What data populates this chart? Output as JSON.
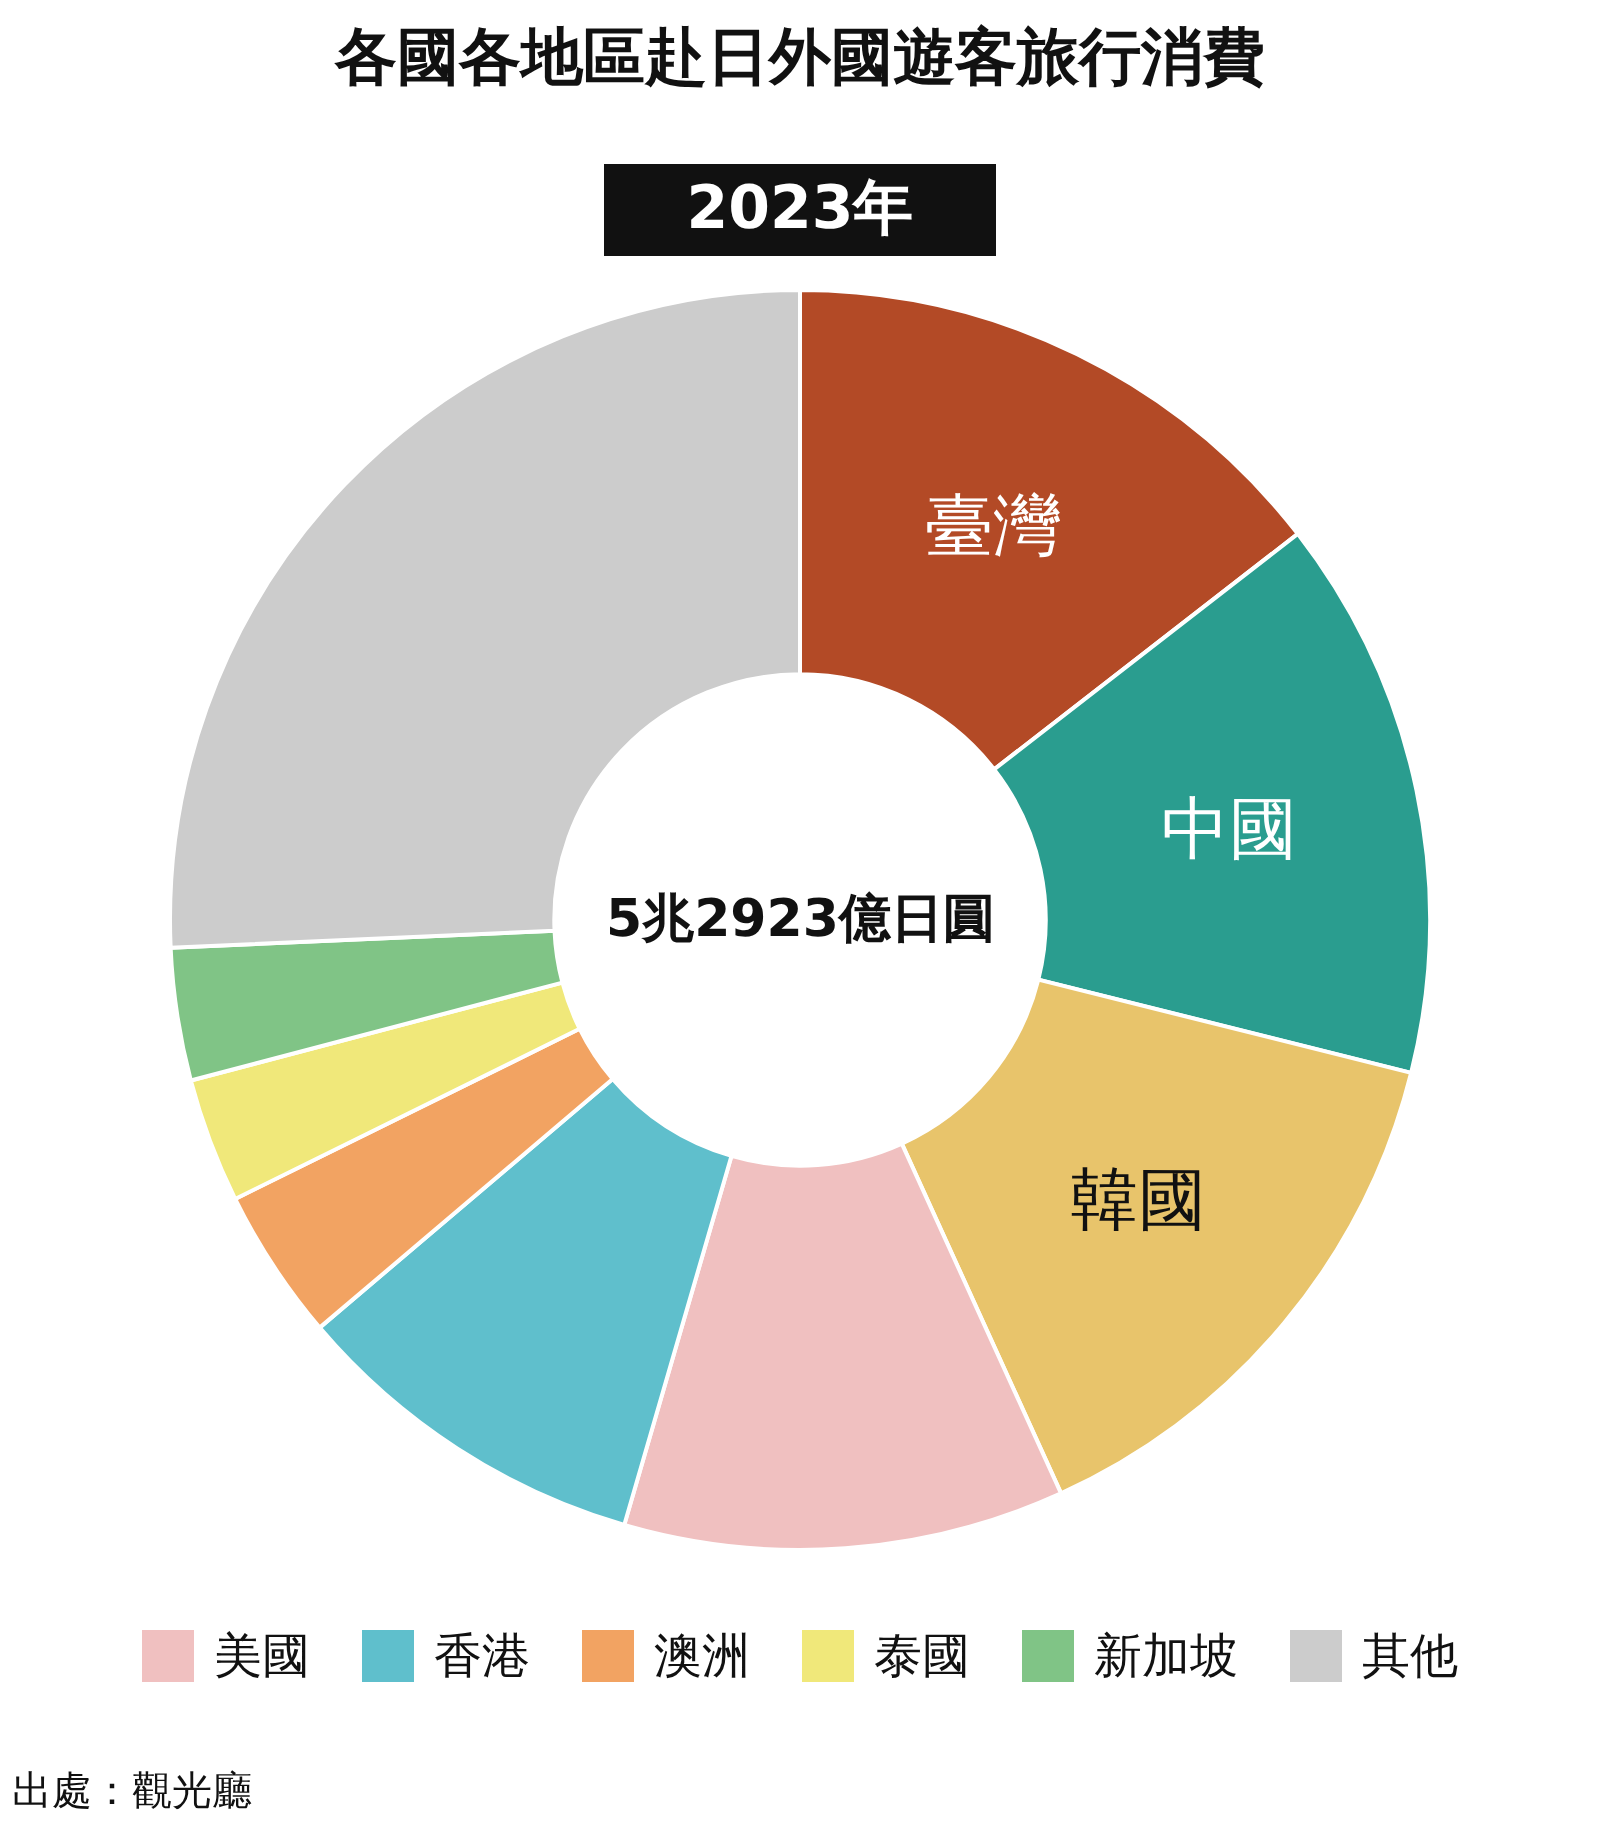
{
  "chart_data": {
    "type": "donut",
    "title": "各國各地區赴日外國遊客旅行消費",
    "subtitle": "2023年",
    "categories": [
      "臺灣",
      "中國",
      "韓國",
      "美國",
      "香港",
      "澳洲",
      "泰國",
      "新加坡",
      "其他"
    ],
    "values": [
      14.5,
      14.4,
      14.3,
      11.3,
      9.3,
      3.9,
      3.2,
      3.4,
      25.7
    ],
    "colors": [
      "#b34a26",
      "#2a9d8f",
      "#e8c46b",
      "#f0c0c0",
      "#5fbfcc",
      "#f2a362",
      "#f0e87a",
      "#80c486",
      "#cccccc"
    ],
    "annotations": [
      "5兆2923億日圓",
      "出處：觀光廳"
    ],
    "legend": "bottom"
  }
}
